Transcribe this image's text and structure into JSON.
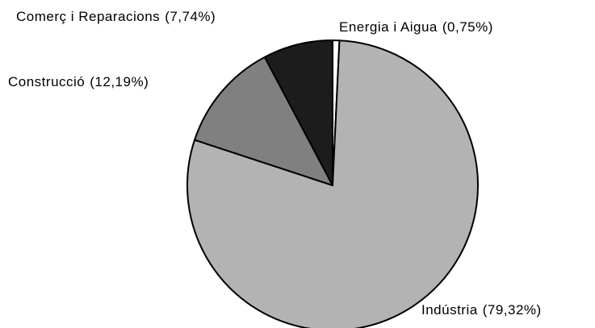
{
  "chart_data": {
    "type": "pie",
    "categories": [
      "Energia i Aigua",
      "Indústria",
      "Construcció",
      "Comerç i Reparacions"
    ],
    "values": [
      0.75,
      79.32,
      12.19,
      7.74
    ],
    "value_labels": [
      "(0,75%)",
      "(79,32%)",
      "(12,19%)",
      "(7,74%)"
    ],
    "colors": [
      "#ffffff",
      "#b3b3b3",
      "#808080",
      "#1c1c1c"
    ]
  }
}
